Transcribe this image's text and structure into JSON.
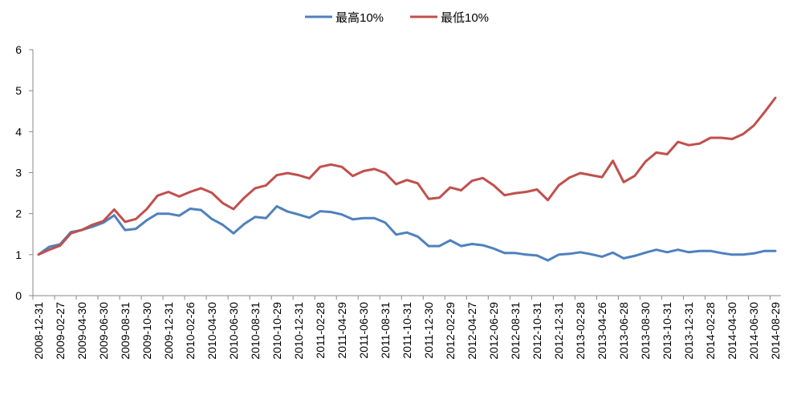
{
  "chart_data": {
    "type": "line",
    "title": "",
    "xlabel": "",
    "ylabel": "",
    "ylim": [
      0,
      6
    ],
    "yticks": [
      0,
      1,
      2,
      3,
      4,
      5,
      6
    ],
    "grid": false,
    "legend_position": "top-center",
    "x": [
      "2008-12-31",
      "2009-01-23",
      "2009-02-27",
      "2009-03-31",
      "2009-04-30",
      "2009-05-27",
      "2009-06-30",
      "2009-07-31",
      "2009-08-31",
      "2009-09-30",
      "2009-10-30",
      "2009-11-30",
      "2009-12-31",
      "2010-01-29",
      "2010-02-26",
      "2010-03-31",
      "2010-04-30",
      "2010-05-31",
      "2010-06-30",
      "2010-07-30",
      "2010-08-31",
      "2010-09-30",
      "2010-10-29",
      "2010-11-30",
      "2010-12-31",
      "2011-01-31",
      "2011-02-28",
      "2011-03-31",
      "2011-04-29",
      "2011-05-31",
      "2011-06-30",
      "2011-07-29",
      "2011-08-31",
      "2011-09-30",
      "2011-10-31",
      "2011-11-30",
      "2011-12-30",
      "2012-01-31",
      "2012-02-29",
      "2012-03-30",
      "2012-04-27",
      "2012-05-31",
      "2012-06-29",
      "2012-07-31",
      "2012-08-31",
      "2012-09-28",
      "2012-10-31",
      "2012-11-30",
      "2012-12-31",
      "2013-01-31",
      "2013-02-28",
      "2013-03-29",
      "2013-04-26",
      "2013-05-31",
      "2013-06-28",
      "2013-07-31",
      "2013-08-30",
      "2013-09-30",
      "2013-10-31",
      "2013-11-29",
      "2013-12-31",
      "2014-01-30",
      "2014-02-28",
      "2014-03-31",
      "2014-04-30",
      "2014-05-30",
      "2014-06-30",
      "2014-07-31",
      "2014-08-29"
    ],
    "x_tick_labels": [
      "2008-12-31",
      "2009-02-27",
      "2009-04-30",
      "2009-06-30",
      "2009-08-31",
      "2009-10-30",
      "2009-12-31",
      "2010-02-26",
      "2010-04-30",
      "2010-06-30",
      "2010-08-31",
      "2010-10-29",
      "2010-12-31",
      "2011-02-28",
      "2011-04-29",
      "2011-06-30",
      "2011-08-31",
      "2011-10-31",
      "2011-12-30",
      "2012-02-29",
      "2012-04-27",
      "2012-06-29",
      "2012-08-31",
      "2012-10-31",
      "2012-12-31",
      "2013-02-28",
      "2013-04-26",
      "2013-06-28",
      "2013-08-30",
      "2013-10-31",
      "2013-12-31",
      "2014-02-28",
      "2014-04-30",
      "2014-06-30",
      "2014-08-29"
    ],
    "series": [
      {
        "name": "最高10%",
        "color": "#4F81BD",
        "values": [
          1.0,
          1.19,
          1.25,
          1.55,
          1.6,
          1.68,
          1.78,
          1.96,
          1.6,
          1.63,
          1.84,
          2.0,
          2.0,
          1.95,
          2.12,
          2.09,
          1.87,
          1.73,
          1.52,
          1.75,
          1.92,
          1.89,
          2.18,
          2.05,
          1.98,
          1.9,
          2.06,
          2.04,
          1.98,
          1.86,
          1.89,
          1.89,
          1.78,
          1.49,
          1.54,
          1.44,
          1.21,
          1.21,
          1.35,
          1.21,
          1.26,
          1.23,
          1.15,
          1.04,
          1.04,
          1.0,
          0.98,
          0.86,
          1.0,
          1.02,
          1.06,
          1.01,
          0.95,
          1.05,
          0.91,
          0.97,
          1.05,
          1.12,
          1.06,
          1.12,
          1.06,
          1.09,
          1.09,
          1.04,
          1.0,
          1.0,
          1.03,
          1.09,
          1.09
        ]
      },
      {
        "name": "最低10%",
        "color": "#C0504D",
        "values": [
          1.0,
          1.12,
          1.22,
          1.52,
          1.6,
          1.73,
          1.82,
          2.1,
          1.8,
          1.87,
          2.11,
          2.44,
          2.53,
          2.42,
          2.53,
          2.62,
          2.51,
          2.26,
          2.11,
          2.39,
          2.62,
          2.69,
          2.94,
          2.99,
          2.94,
          2.86,
          3.14,
          3.2,
          3.14,
          2.92,
          3.04,
          3.09,
          2.99,
          2.72,
          2.82,
          2.74,
          2.36,
          2.39,
          2.64,
          2.57,
          2.8,
          2.87,
          2.69,
          2.45,
          2.5,
          2.53,
          2.59,
          2.33,
          2.69,
          2.88,
          2.99,
          2.94,
          2.89,
          3.29,
          2.77,
          2.92,
          3.27,
          3.49,
          3.45,
          3.75,
          3.67,
          3.71,
          3.85,
          3.85,
          3.82,
          3.94,
          4.15,
          4.48,
          4.83
        ]
      }
    ]
  }
}
